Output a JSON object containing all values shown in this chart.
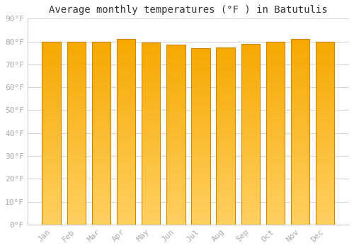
{
  "title": "Average monthly temperatures (°F ) in Batutulis",
  "months": [
    "Jan",
    "Feb",
    "Mar",
    "Apr",
    "May",
    "Jun",
    "Jul",
    "Aug",
    "Sep",
    "Oct",
    "Nov",
    "Dec"
  ],
  "values": [
    80,
    80,
    80,
    81,
    79.5,
    78.5,
    77,
    77.5,
    79,
    80,
    81,
    80
  ],
  "ylim": [
    0,
    90
  ],
  "yticks": [
    0,
    10,
    20,
    30,
    40,
    50,
    60,
    70,
    80,
    90
  ],
  "ytick_labels": [
    "0°F",
    "10°F",
    "20°F",
    "30°F",
    "40°F",
    "50°F",
    "60°F",
    "70°F",
    "80°F",
    "90°F"
  ],
  "bar_color_bottom": "#FFD060",
  "bar_color_top": "#F5A800",
  "bar_edge_color": "#CC8800",
  "background_color": "#ffffff",
  "grid_color": "#cccccc",
  "title_fontsize": 10,
  "tick_fontsize": 8,
  "tick_color": "#aaaaaa",
  "bar_width": 0.75,
  "gradient_steps": 100
}
